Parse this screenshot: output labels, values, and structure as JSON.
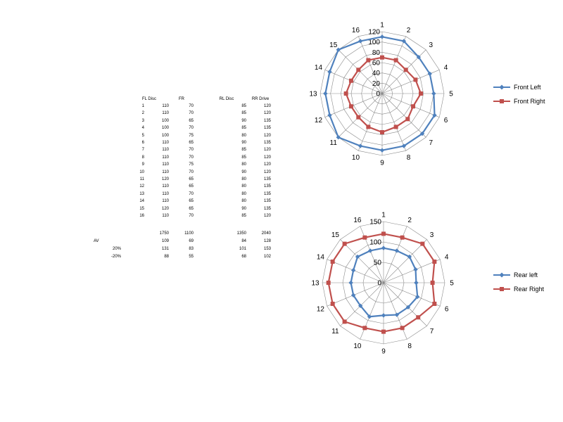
{
  "table": {
    "headers": [
      "FL Disc",
      "FR",
      "RL Disc",
      "RR Drive"
    ],
    "rows": [
      [
        "1",
        "110",
        "70",
        "85",
        "120"
      ],
      [
        "2",
        "110",
        "70",
        "85",
        "120"
      ],
      [
        "3",
        "100",
        "65",
        "90",
        "135"
      ],
      [
        "4",
        "100",
        "70",
        "85",
        "135"
      ],
      [
        "5",
        "100",
        "75",
        "80",
        "120"
      ],
      [
        "6",
        "110",
        "65",
        "90",
        "135"
      ],
      [
        "7",
        "110",
        "70",
        "85",
        "120"
      ],
      [
        "8",
        "110",
        "70",
        "85",
        "120"
      ],
      [
        "9",
        "110",
        "75",
        "80",
        "120"
      ],
      [
        "10",
        "110",
        "70",
        "90",
        "120"
      ],
      [
        "11",
        "120",
        "65",
        "80",
        "135"
      ],
      [
        "12",
        "110",
        "65",
        "80",
        "135"
      ],
      [
        "13",
        "110",
        "70",
        "80",
        "135"
      ],
      [
        "14",
        "110",
        "65",
        "80",
        "135"
      ],
      [
        "15",
        "120",
        "65",
        "90",
        "135"
      ],
      [
        "16",
        "110",
        "70",
        "85",
        "120"
      ]
    ],
    "summary": [
      [
        "",
        "1750",
        "1100",
        "1350",
        "2040"
      ],
      [
        "AV",
        "109",
        "69",
        "84",
        "128"
      ],
      [
        "20%",
        "131",
        "83",
        "101",
        "153"
      ],
      [
        "-20%",
        "88",
        "55",
        "68",
        "102"
      ]
    ]
  },
  "chart_data": [
    {
      "type": "radar",
      "categories": [
        "1",
        "2",
        "3",
        "4",
        "5",
        "6",
        "7",
        "8",
        "9",
        "10",
        "11",
        "12",
        "13",
        "14",
        "15",
        "16"
      ],
      "rlim": [
        0,
        120
      ],
      "ticks": [
        "0",
        "20",
        "40",
        "60",
        "80",
        "100",
        "120"
      ],
      "tick_values": [
        0,
        20,
        40,
        60,
        80,
        100,
        120
      ],
      "grid": true,
      "legend_position": "right",
      "series": [
        {
          "name": "Front Left",
          "color": "#4f81bd",
          "marker": "diamond",
          "values": [
            110,
            110,
            100,
            100,
            100,
            110,
            110,
            110,
            110,
            110,
            120,
            110,
            110,
            110,
            120,
            110
          ]
        },
        {
          "name": "Front Right",
          "color": "#c0504d",
          "marker": "square",
          "values": [
            70,
            70,
            65,
            70,
            75,
            65,
            70,
            70,
            75,
            70,
            65,
            65,
            70,
            65,
            65,
            70
          ]
        }
      ]
    },
    {
      "type": "radar",
      "categories": [
        "1",
        "2",
        "3",
        "4",
        "5",
        "6",
        "7",
        "8",
        "9",
        "10",
        "11",
        "12",
        "13",
        "14",
        "15",
        "16"
      ],
      "rlim": [
        0,
        150
      ],
      "ticks": [
        "0",
        "50",
        "100",
        "150"
      ],
      "tick_values": [
        0,
        50,
        100,
        150
      ],
      "grid": true,
      "legend_position": "right",
      "series": [
        {
          "name": "Rear left",
          "color": "#4f81bd",
          "marker": "diamond",
          "values": [
            85,
            85,
            90,
            85,
            80,
            90,
            85,
            85,
            80,
            90,
            80,
            80,
            80,
            80,
            90,
            85
          ]
        },
        {
          "name": "Rear Right",
          "color": "#c0504d",
          "marker": "square",
          "values": [
            120,
            120,
            135,
            135,
            120,
            135,
            120,
            120,
            120,
            120,
            135,
            135,
            135,
            135,
            135,
            120
          ]
        }
      ]
    }
  ]
}
